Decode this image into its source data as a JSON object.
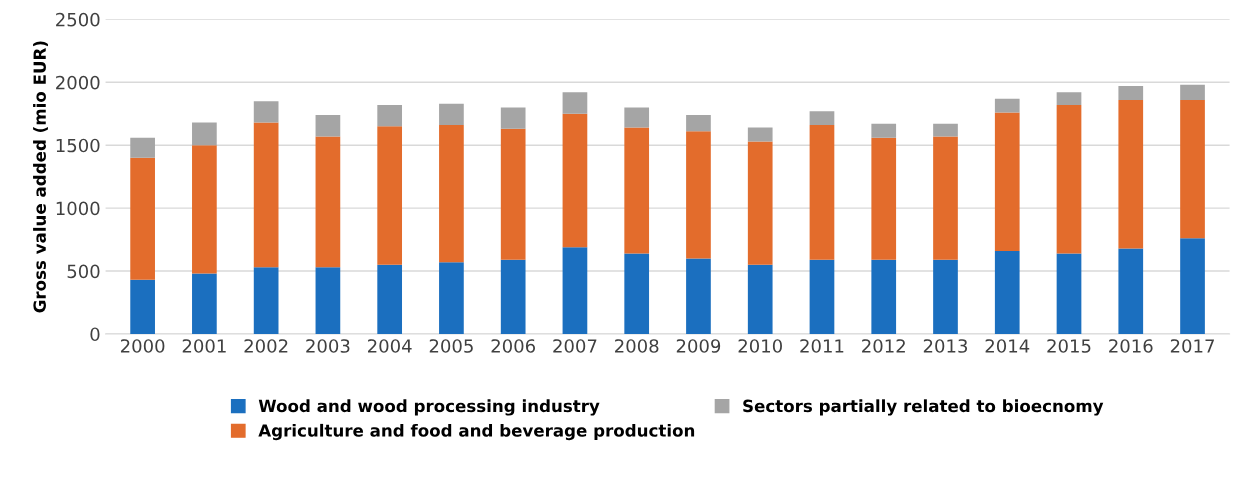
{
  "chart_data": {
    "type": "bar",
    "stacked": true,
    "ylabel": "Gross value added (mio EUR)",
    "categories": [
      "2000",
      "2001",
      "2002",
      "2003",
      "2004",
      "2005",
      "2006",
      "2007",
      "2008",
      "2009",
      "2010",
      "2011",
      "2012",
      "2013",
      "2014",
      "2015",
      "2016",
      "2017"
    ],
    "series": [
      {
        "name": "Wood and wood processing industry",
        "color": "#1b6fbf",
        "values": [
          430,
          480,
          530,
          530,
          550,
          570,
          590,
          690,
          640,
          600,
          550,
          590,
          590,
          590,
          660,
          640,
          680,
          760
        ]
      },
      {
        "name": "Agriculture and food and beverage production",
        "color": "#e36c2c",
        "values": [
          970,
          1020,
          1150,
          1040,
          1100,
          1090,
          1040,
          1060,
          1000,
          1010,
          980,
          1070,
          970,
          980,
          1100,
          1180,
          1180,
          1100
        ]
      },
      {
        "name": "Sectors partially related to bioecnomy",
        "color": "#a5a5a5",
        "values": [
          160,
          180,
          170,
          170,
          170,
          170,
          170,
          170,
          160,
          130,
          110,
          110,
          110,
          100,
          110,
          100,
          110,
          120
        ]
      }
    ],
    "ylim": [
      0,
      2500
    ],
    "yticks": [
      0,
      500,
      1000,
      1500,
      2000,
      2500
    ],
    "grid": "y",
    "legend": "bottom"
  }
}
